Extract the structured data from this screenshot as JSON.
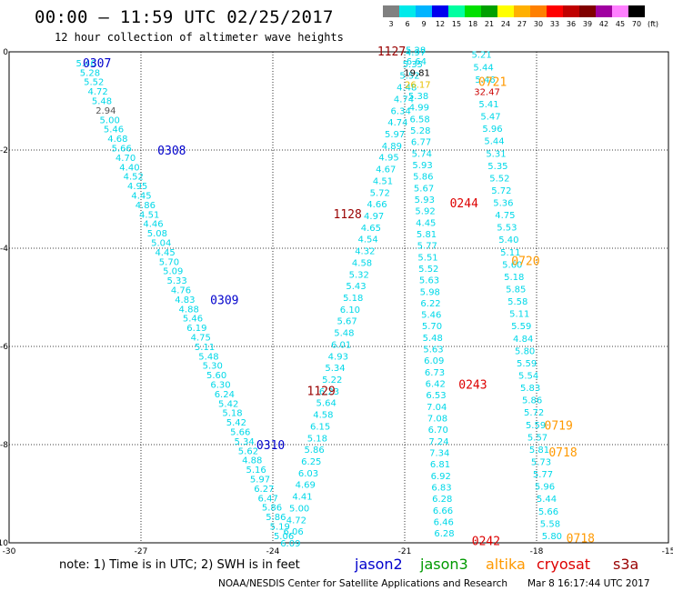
{
  "header": {
    "title": "00:00 — 11:59 UTC 02/25/2017",
    "subtitle": "12 hour collection of altimeter wave heights"
  },
  "color_scale": {
    "boxes": [
      "#808080",
      "#00eaea",
      "#00b4ff",
      "#0000ee",
      "#00ffa0",
      "#00e000",
      "#00a000",
      "#ffff00",
      "#ffb000",
      "#ff8000",
      "#ff0000",
      "#c00000",
      "#800000",
      "#a000a0",
      "#ff80ff",
      "#000000"
    ],
    "labels": [
      "3",
      "6",
      "9",
      "12",
      "15",
      "18",
      "21",
      "24",
      "27",
      "30",
      "33",
      "36",
      "39",
      "42",
      "45",
      "70",
      "(ft)"
    ]
  },
  "legend": {
    "note": "note:  1) Time is in UTC;  2) SWH is in feet",
    "satellites": [
      {
        "name": "jason2",
        "color": "#0000cc"
      },
      {
        "name": "jason3",
        "color": "#009900"
      },
      {
        "name": "altika",
        "color": "#ff9900"
      },
      {
        "name": "cryosat",
        "color": "#dd0000"
      },
      {
        "name": "s3a",
        "color": "#990000"
      }
    ]
  },
  "footer": {
    "credit": "NOAA/NESDIS Center for Satellite Applications and Research",
    "timestamp": "Mar  8 16:17:44 UTC 2017"
  },
  "chart_data": {
    "type": "scatter",
    "x_range": [
      -30,
      -15
    ],
    "y_range": [
      -10,
      0
    ],
    "x_ticks": [
      "-30",
      "-27",
      "-24",
      "-21",
      "-18",
      "-15"
    ],
    "y_ticks": [
      "0",
      "-2",
      "-4",
      "-6",
      "-8",
      "-10"
    ],
    "grid": true,
    "pass_labels": [
      {
        "text": "0307",
        "lon": -28.0,
        "lat": -0.22,
        "color": "#0000cc"
      },
      {
        "text": "0308",
        "lon": -26.3,
        "lat": -2.0,
        "color": "#0000cc"
      },
      {
        "text": "0309",
        "lon": -25.1,
        "lat": -5.05,
        "color": "#0000cc"
      },
      {
        "text": "0310",
        "lon": -24.05,
        "lat": -8.0,
        "color": "#0000cc"
      },
      {
        "text": "1127",
        "lon": -21.3,
        "lat": 0.02,
        "color": "#990000"
      },
      {
        "text": "1128",
        "lon": -22.3,
        "lat": -3.3,
        "color": "#990000"
      },
      {
        "text": "1129",
        "lon": -22.9,
        "lat": -6.9,
        "color": "#990000"
      },
      {
        "text": "0244",
        "lon": -19.65,
        "lat": -3.07,
        "color": "#dd0000"
      },
      {
        "text": "0243",
        "lon": -19.45,
        "lat": -6.77,
        "color": "#dd0000"
      },
      {
        "text": "0242",
        "lon": -19.15,
        "lat": -9.95,
        "color": "#dd0000"
      },
      {
        "text": "0721",
        "lon": -19.0,
        "lat": -0.6,
        "color": "#ff9900"
      },
      {
        "text": "0720",
        "lon": -18.25,
        "lat": -4.25,
        "color": "#ff9900"
      },
      {
        "text": "0719",
        "lon": -17.5,
        "lat": -7.6,
        "color": "#ff9900"
      },
      {
        "text": "0718",
        "lon": -17.4,
        "lat": -8.15,
        "color": "#ff9900"
      },
      {
        "text": "0718",
        "lon": -17.0,
        "lat": -9.9,
        "color": "#ff9900"
      }
    ],
    "tracks": [
      {
        "name": "jason2-0307",
        "color": "#00d8e8",
        "lon_start": -28.25,
        "lat_start": -0.22,
        "lon_end": -23.75,
        "lat_end": -9.85,
        "values": [
          "5.46",
          "5.28",
          "5.52",
          "4.72",
          "5.48",
          "2.94",
          "5.00",
          "5.46",
          "4.68",
          "5.66",
          "4.70",
          "4.40",
          "4.52",
          "4.95",
          "4.45",
          "4.86",
          "4.51",
          "4.46",
          "5.08",
          "5.04",
          "4.45",
          "5.70",
          "5.09",
          "5.33",
          "4.76",
          "4.83",
          "4.88",
          "5.46",
          "6.19",
          "4.75",
          "5.11",
          "5.48",
          "5.30",
          "5.60",
          "6.30",
          "6.24",
          "5.42",
          "5.18",
          "5.42",
          "5.66",
          "5.34",
          "5.62",
          "4.88",
          "5.16",
          "5.97",
          "6.27",
          "6.47",
          "5.86",
          "5.86",
          "5.19",
          "5.06"
        ]
      },
      {
        "name": "s3a-1128",
        "color": "#00d8e8",
        "lon_start": -20.75,
        "lat_start": 0.0,
        "lon_end": -23.6,
        "lat_end": -10.0,
        "values": [
          "4.97",
          "5.35",
          "5.52",
          "4.48",
          "4.74",
          "6.34",
          "4.74",
          "5.97",
          "4.89",
          "4.95",
          "4.67",
          "4.51",
          "5.72",
          "4.66",
          "4.97",
          "4.65",
          "4.54",
          "4.32",
          "4.58",
          "5.32",
          "5.43",
          "5.18",
          "6.10",
          "5.67",
          "5.48",
          "6.01",
          "4.93",
          "5.34",
          "5.22",
          "6.23",
          "5.64",
          "4.58",
          "6.15",
          "5.18",
          "5.86",
          "6.25",
          "6.03",
          "4.69",
          "4.41",
          "5.00",
          "4.72",
          "6.06",
          "6.09"
        ]
      },
      {
        "name": "cryosat-0243",
        "color": "#00d8e8",
        "lon_start": -20.75,
        "lat_start": 0.05,
        "lon_end": -20.1,
        "lat_end": -9.8,
        "values": [
          "5.28",
          "6.64",
          "19.81",
          "26.17",
          "5.38",
          "4.99",
          "6.58",
          "5.28",
          "6.77",
          "5.74",
          "5.93",
          "5.86",
          "5.67",
          "5.93",
          "5.92",
          "4.45",
          "5.81",
          "5.77",
          "5.51",
          "5.52",
          "5.63",
          "5.98",
          "6.22",
          "5.46",
          "5.70",
          "5.48",
          "5.63",
          "6.09",
          "6.73",
          "6.42",
          "6.53",
          "7.04",
          "7.08",
          "6.70",
          "7.24",
          "7.34",
          "6.81",
          "6.92",
          "6.83",
          "6.28",
          "6.66",
          "6.46",
          "6.28"
        ]
      },
      {
        "name": "altika-0720",
        "color": "#00d8e8",
        "lon_start": -19.25,
        "lat_start": -0.05,
        "lon_end": -17.65,
        "lat_end": -9.85,
        "values": [
          "5.21",
          "5.44",
          "5.46",
          "32.47",
          "5.41",
          "5.47",
          "5.96",
          "5.44",
          "5.31",
          "5.35",
          "5.52",
          "5.72",
          "5.36",
          "4.75",
          "5.53",
          "5.40",
          "5.11",
          "5.60",
          "5.18",
          "5.85",
          "5.58",
          "5.11",
          "5.59",
          "4.84",
          "5.80",
          "5.59",
          "5.54",
          "5.83",
          "5.86",
          "5.72",
          "5.59",
          "5.57",
          "5.81",
          "5.73",
          "5.77",
          "5.96",
          "5.44",
          "5.66",
          "5.58",
          "5.80"
        ]
      }
    ],
    "value_colors": {
      "19.81": "#000000",
      "26.17": "#e8c000",
      "32.47": "#cc0000",
      "2.94": "#555555"
    }
  }
}
